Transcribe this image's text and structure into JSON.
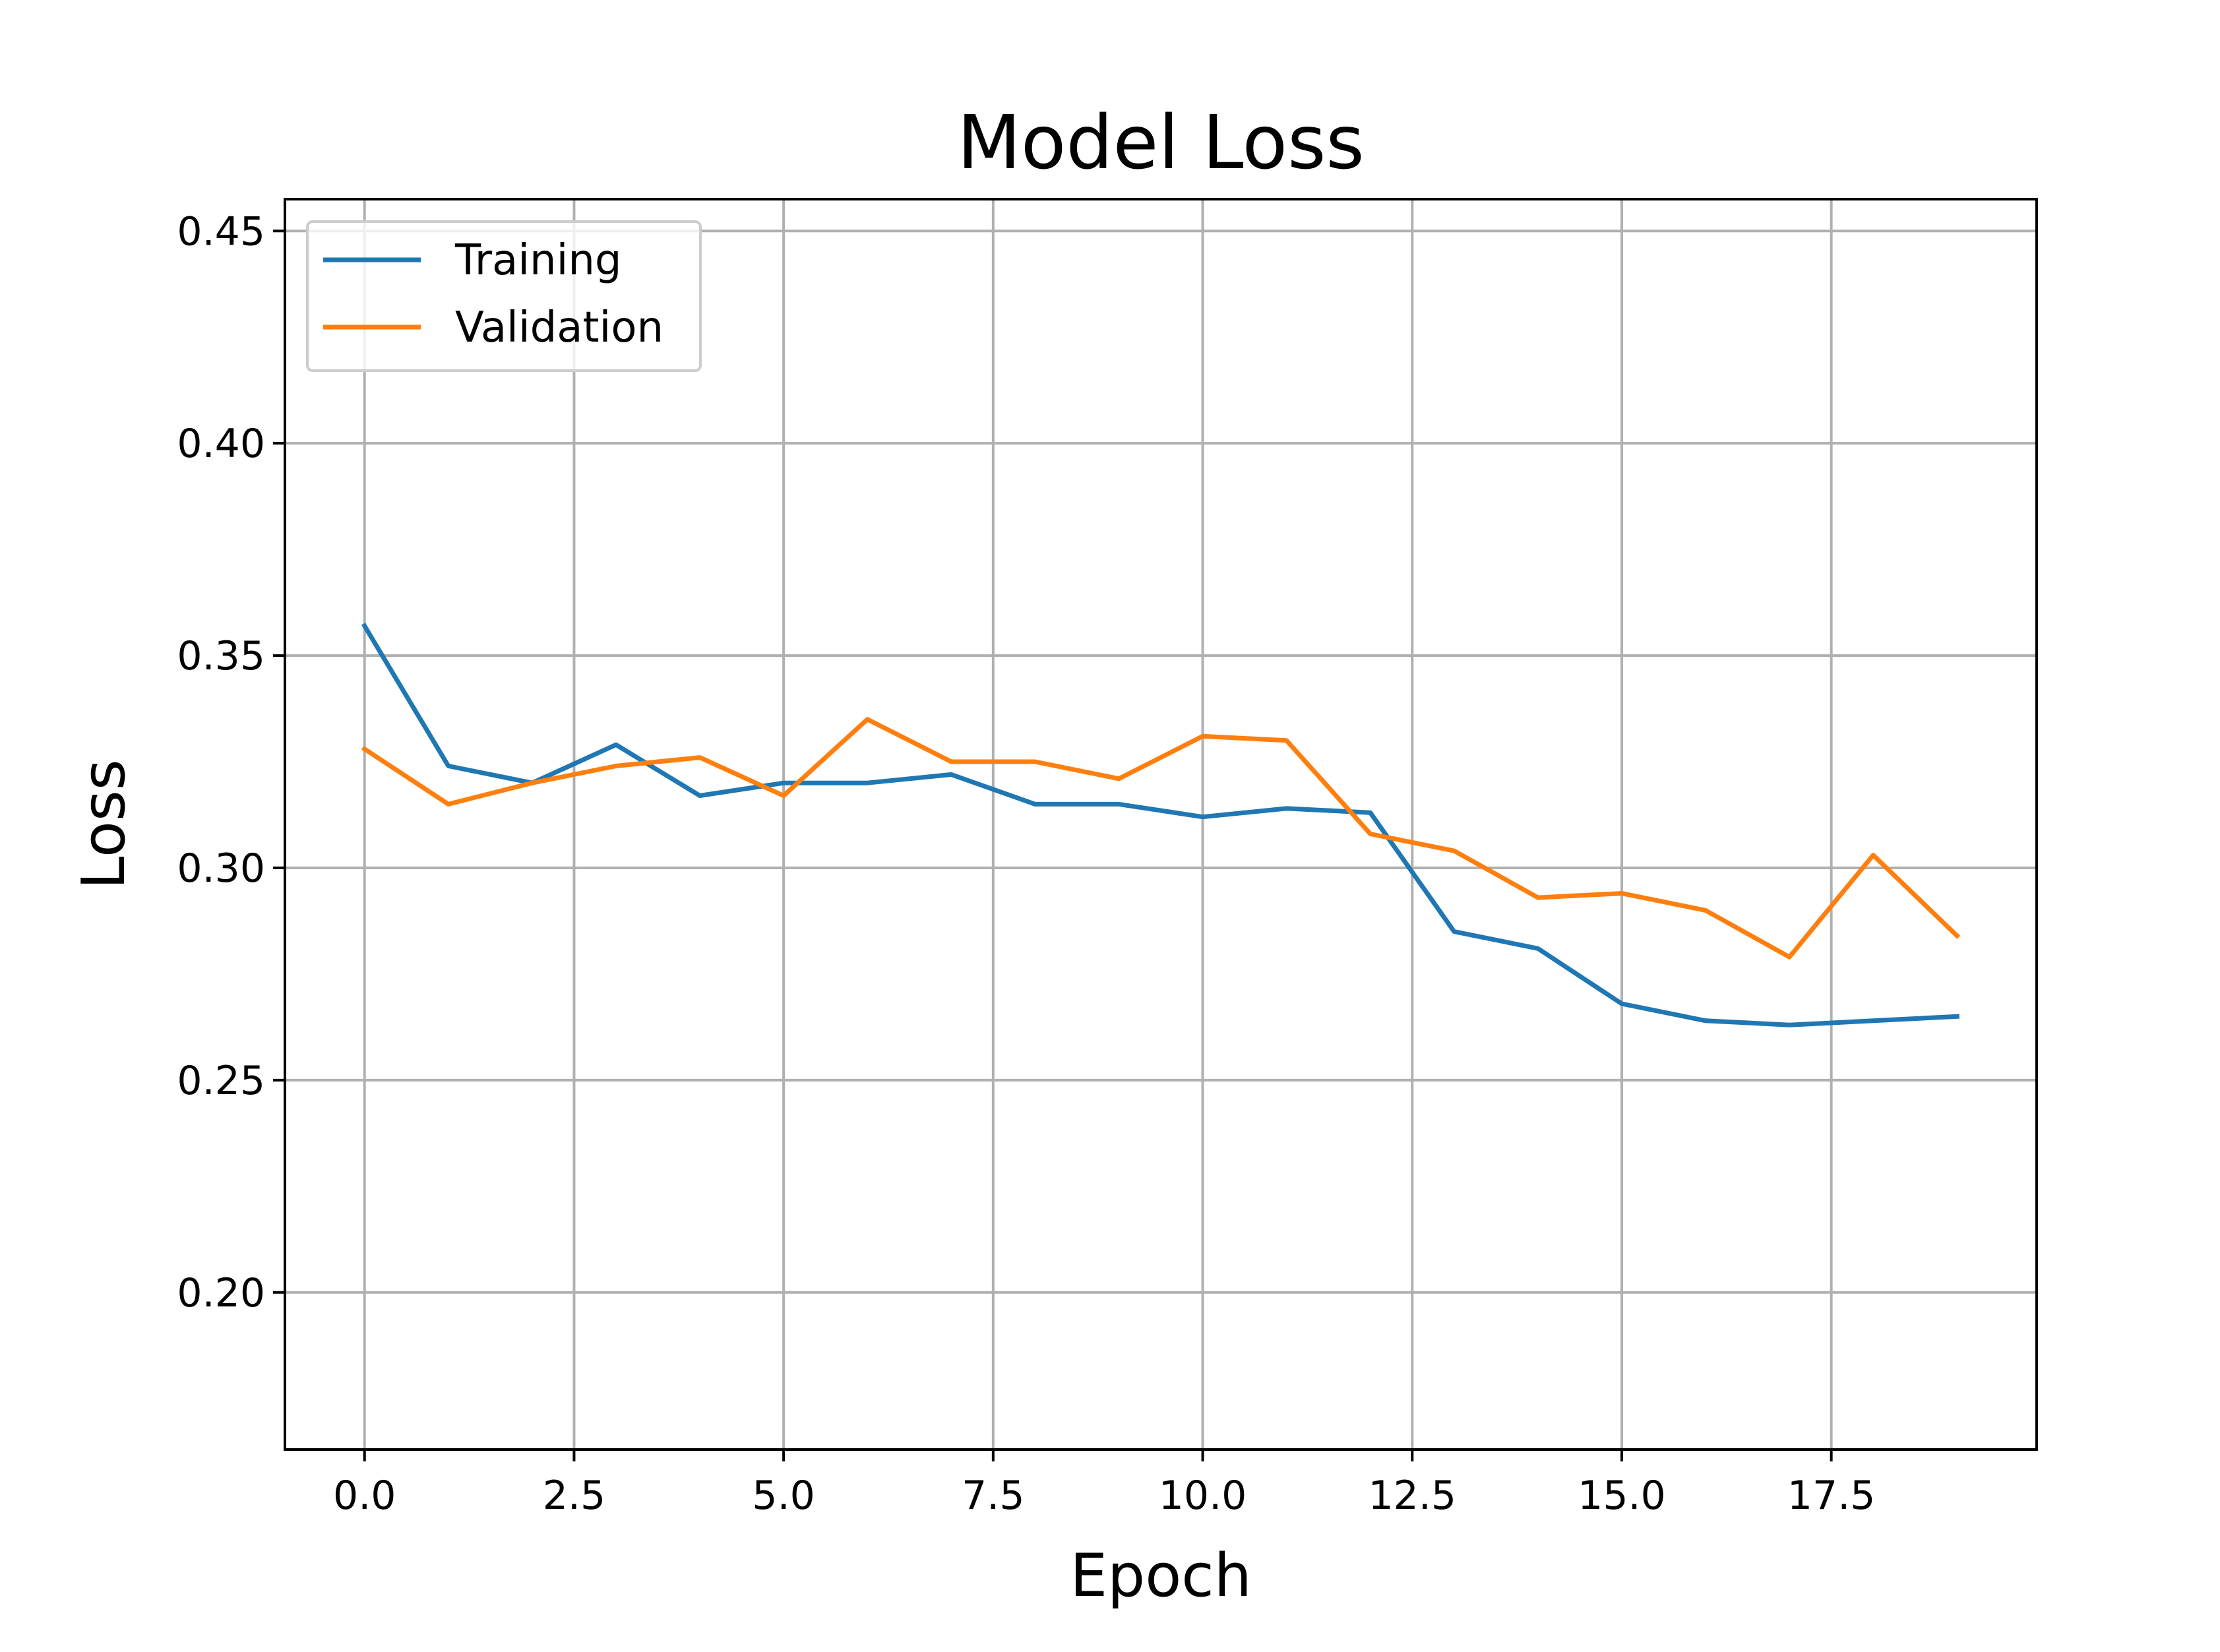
{
  "chart_data": {
    "type": "line",
    "title": "Model Loss",
    "xlabel": "Epoch",
    "ylabel": "Loss",
    "xlim": [
      -0.95,
      19.95
    ],
    "ylim": [
      0.163,
      0.4575
    ],
    "xticks": [
      0.0,
      2.5,
      5.0,
      7.5,
      10.0,
      12.5,
      15.0,
      17.5
    ],
    "xtick_labels": [
      "0.0",
      "2.5",
      "5.0",
      "7.5",
      "10.0",
      "12.5",
      "15.0",
      "17.5"
    ],
    "yticks": [
      0.2,
      0.25,
      0.3,
      0.35,
      0.4,
      0.45
    ],
    "ytick_labels": [
      "0.20",
      "0.25",
      "0.30",
      "0.35",
      "0.40",
      "0.45"
    ],
    "grid": true,
    "legend_position": "top-left",
    "x": [
      0,
      1,
      2,
      3,
      4,
      5,
      6,
      7,
      8,
      9,
      10,
      11,
      12,
      13,
      14,
      15,
      16,
      17,
      18,
      19
    ],
    "series": [
      {
        "name": "Training",
        "color": "#1f77b4",
        "values": [
          0.357,
          0.324,
          0.32,
          0.329,
          0.317,
          0.32,
          0.32,
          0.322,
          0.315,
          0.315,
          0.312,
          0.314,
          0.313,
          0.285,
          0.281,
          0.268,
          0.264,
          0.263,
          0.264,
          0.265
        ]
      },
      {
        "name": "Validation",
        "color": "#ff7f0e",
        "values": [
          0.328,
          0.315,
          0.32,
          0.324,
          0.326,
          0.317,
          0.335,
          0.325,
          0.325,
          0.321,
          0.331,
          0.33,
          0.308,
          0.304,
          0.293,
          0.294,
          0.29,
          0.279,
          0.303,
          0.284
        ]
      }
    ]
  }
}
